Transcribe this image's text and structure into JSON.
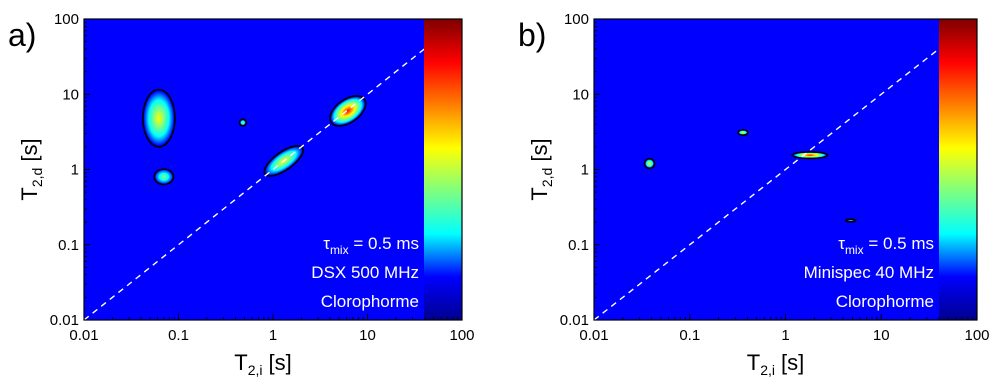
{
  "chart_data": [
    {
      "type": "heatmap",
      "panel_label": "a)",
      "xlabel": {
        "main": "T",
        "sub": "2,i",
        "unit": "[s]"
      },
      "ylabel": {
        "main": "T",
        "sub": "2,d",
        "unit": "[s]"
      },
      "xscale": "log",
      "yscale": "log",
      "xlim": [
        0.01,
        100
      ],
      "ylim": [
        0.01,
        100
      ],
      "xticks": [
        "0.01",
        "0.1",
        "1",
        "10",
        "100"
      ],
      "yticks": [
        "0.01",
        "0.1",
        "1",
        "10",
        "100"
      ],
      "diagonal": "dashed y = x line",
      "colorbar": "jet colormap strip on the right edge (blue low, red high)",
      "annotation": {
        "tau": "τ",
        "tau_sub": "mix",
        "tau_value": " = 0.5 ms",
        "line1": "DSX 500 MHz",
        "line2": "Clorophorme"
      },
      "peaks": [
        {
          "x": 0.062,
          "y": 4.8,
          "intensity": 0.55,
          "spread_x": 1.45,
          "spread_y": 2.3,
          "contour": "outlined"
        },
        {
          "x": 0.07,
          "y": 0.8,
          "intensity": 0.3,
          "spread_x": 1.25,
          "spread_y": 1.25,
          "contour": "outlined"
        },
        {
          "x": 0.48,
          "y": 4.2,
          "intensity": 0.35,
          "spread_x": 1.08,
          "spread_y": 1.1,
          "contour": "outlined"
        },
        {
          "x": 6.2,
          "y": 6.0,
          "intensity": 0.95,
          "spread_x": 1.6,
          "spread_y": 1.4,
          "contour": "outlined",
          "orientation": "diagonal"
        },
        {
          "x": 1.3,
          "y": 1.3,
          "intensity": 0.45,
          "spread_x": 1.7,
          "spread_y": 1.3,
          "contour": "outlined",
          "orientation": "diagonal"
        }
      ]
    },
    {
      "type": "heatmap",
      "panel_label": "b)",
      "xlabel": {
        "main": "T",
        "sub": "2,i",
        "unit": "[s]"
      },
      "ylabel": {
        "main": "T",
        "sub": "2,d",
        "unit": "[s]"
      },
      "xscale": "log",
      "yscale": "log",
      "xlim": [
        0.01,
        100
      ],
      "ylim": [
        0.01,
        100
      ],
      "xticks": [
        "0.01",
        "0.1",
        "1",
        "10",
        "100"
      ],
      "yticks": [
        "0.01",
        "0.1",
        "1",
        "10",
        "100"
      ],
      "diagonal": "dashed y = x line",
      "colorbar": "jet colormap strip on the right edge (blue low, red high)",
      "annotation": {
        "tau": "τ",
        "tau_sub": "mix",
        "tau_value": " = 0.5 ms",
        "line1": "Minispec 40 MHz",
        "line2": "Clorophorme"
      },
      "peaks": [
        {
          "x": 0.038,
          "y": 1.2,
          "intensity": 0.45,
          "spread_x": 1.12,
          "spread_y": 1.15,
          "contour": "outlined"
        },
        {
          "x": 0.36,
          "y": 3.1,
          "intensity": 0.45,
          "spread_x": 1.12,
          "spread_y": 1.08,
          "contour": "outlined"
        },
        {
          "x": 1.8,
          "y": 1.55,
          "intensity": 0.95,
          "spread_x": 1.5,
          "spread_y": 1.1,
          "contour": "outlined"
        },
        {
          "x": 4.8,
          "y": 0.21,
          "intensity": 0.1,
          "spread_x": 1.12,
          "spread_y": 1.04,
          "contour": "outlined"
        }
      ]
    }
  ],
  "colors": {
    "background": "#0000ff",
    "frame": "#000000",
    "diagonal": "#ffffff",
    "annotation_text": "#ffffff",
    "colormap": [
      "#00008f",
      "#0000ff",
      "#00ffff",
      "#7fff7f",
      "#ffff00",
      "#ff7f00",
      "#ff0000",
      "#7f0000"
    ]
  }
}
